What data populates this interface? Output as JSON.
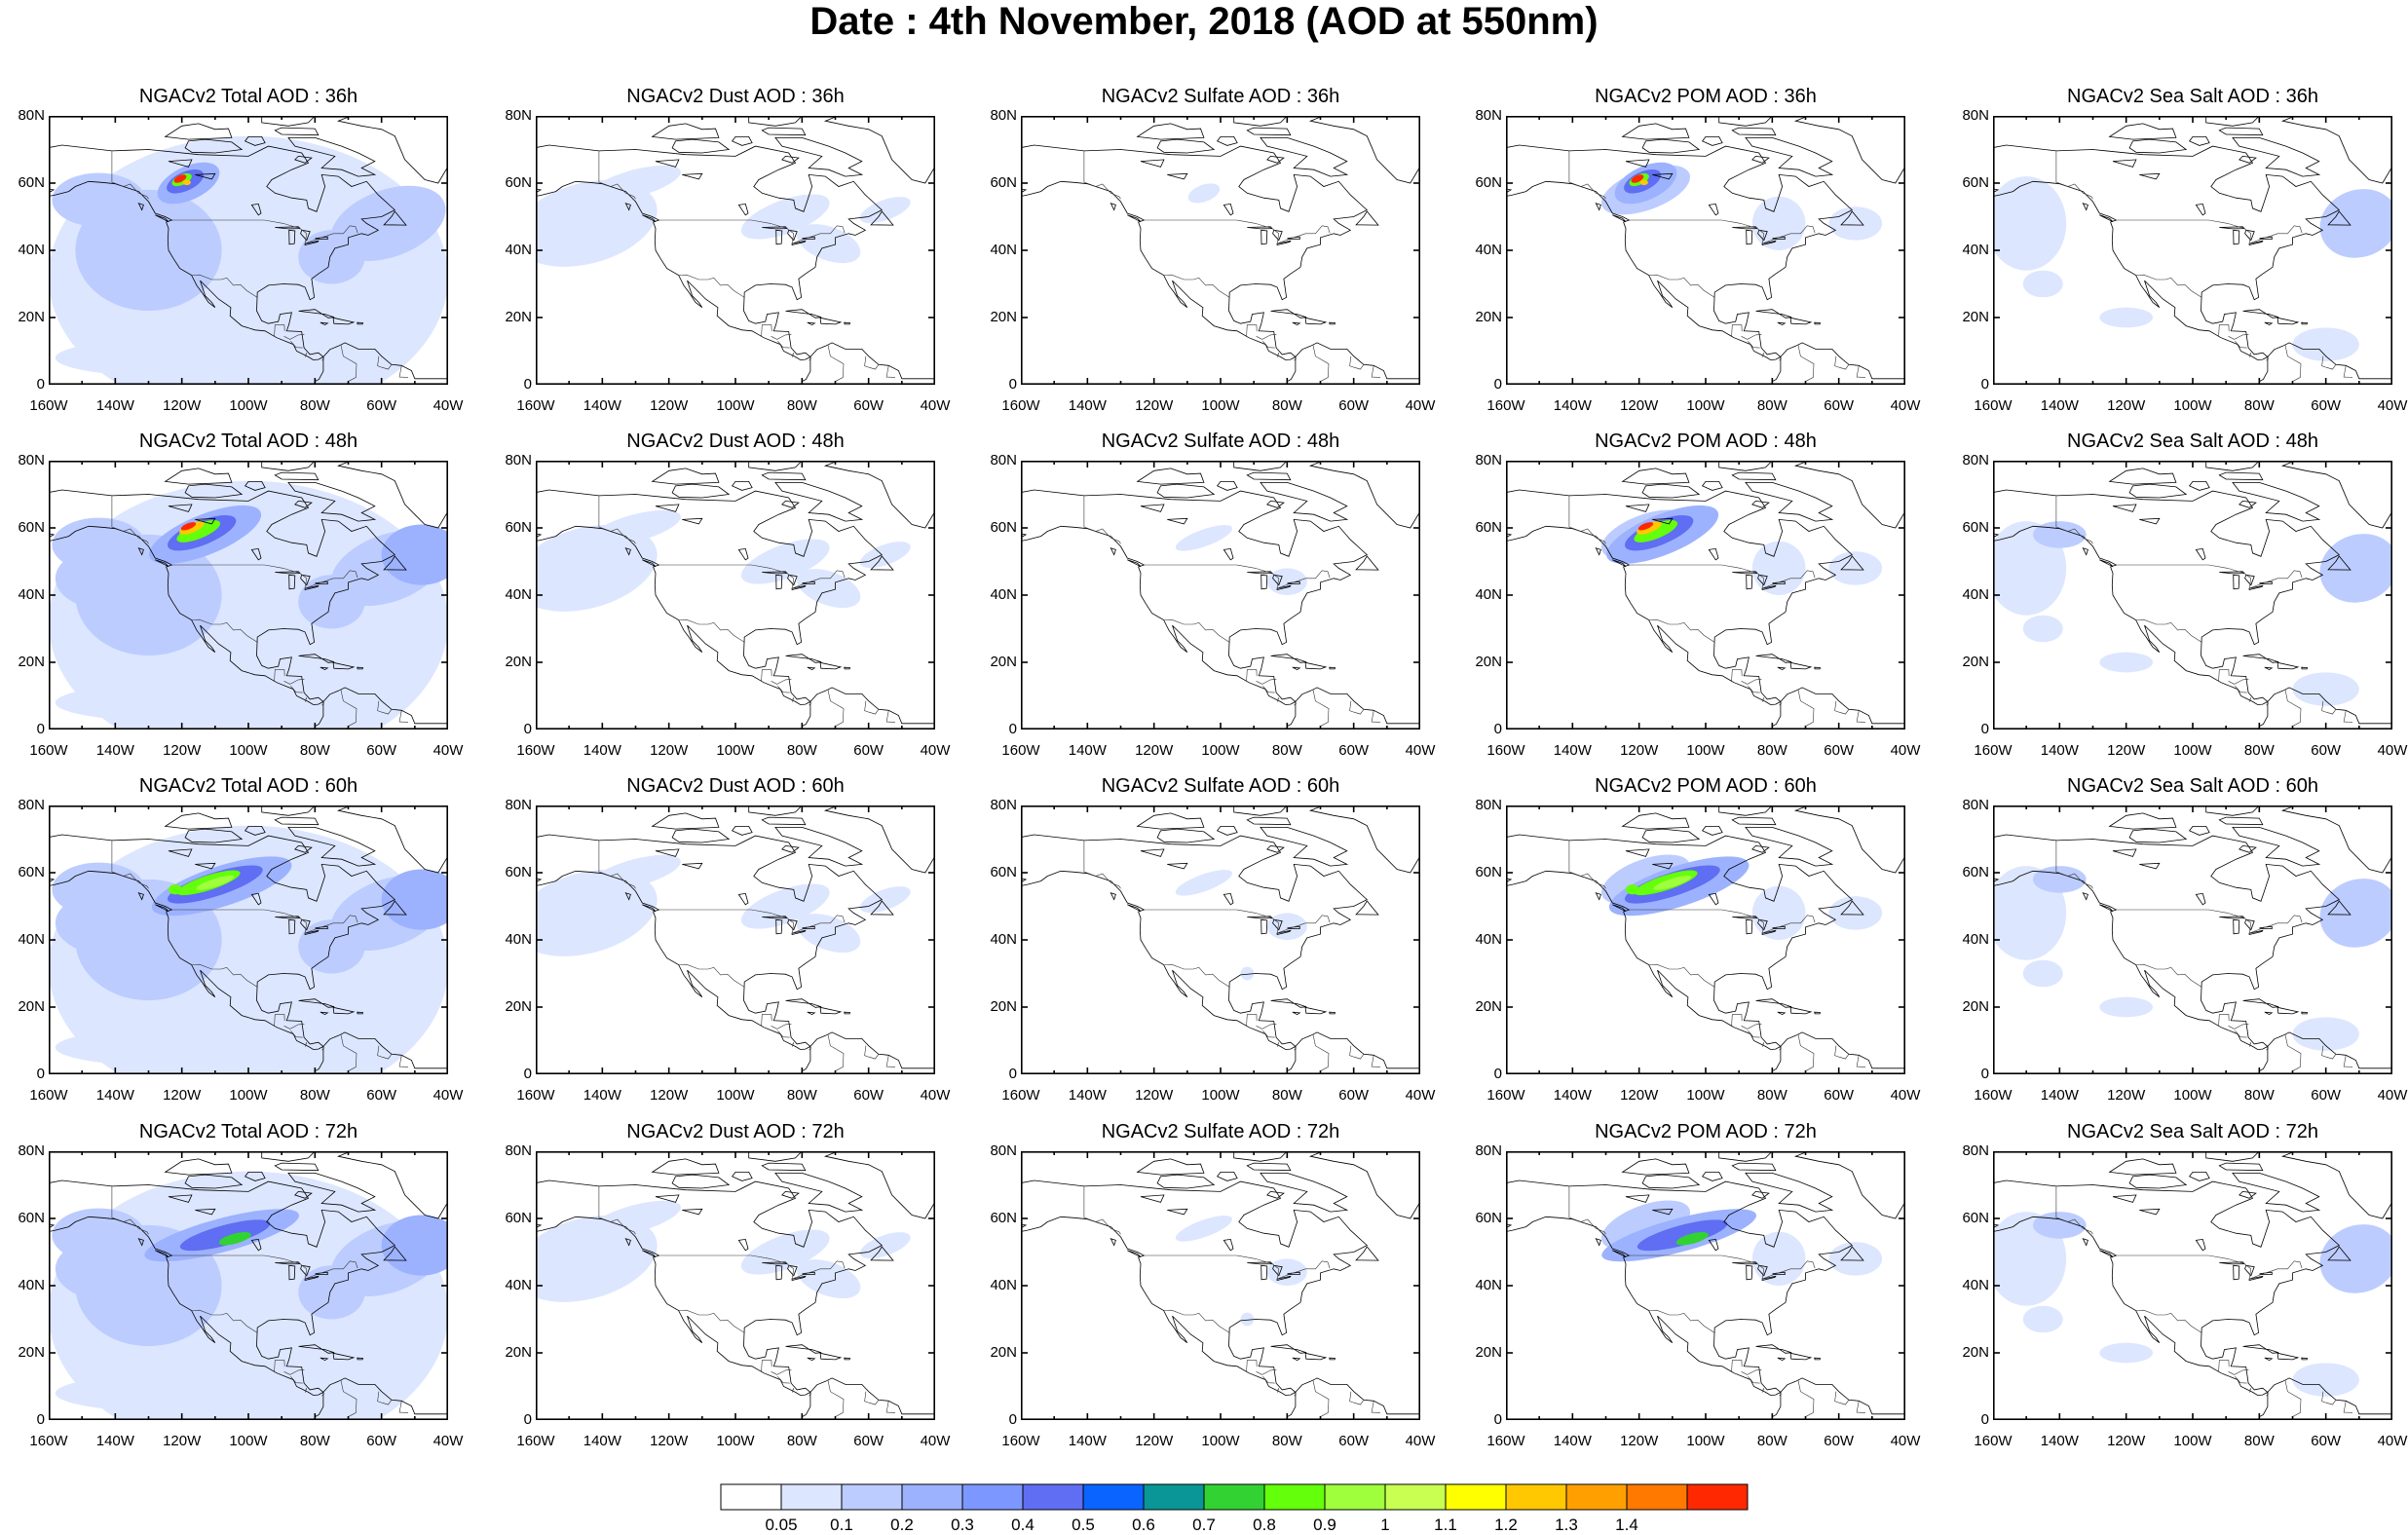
{
  "title": "Date : 4th November, 2018 (AOD at 550nm)",
  "xticks": [
    "160W",
    "140W",
    "120W",
    "100W",
    "80W",
    "60W",
    "40W"
  ],
  "yticks": [
    "80N",
    "60N",
    "40N",
    "20N",
    "0"
  ],
  "colorbar": {
    "labels": [
      "0.05",
      "0.1",
      "0.2",
      "0.3",
      "0.4",
      "0.5",
      "0.6",
      "0.7",
      "0.8",
      "0.9",
      "1",
      "1.1",
      "1.2",
      "1.3",
      "1.4"
    ],
    "colors": [
      "#ffffff",
      "#dce6ff",
      "#bcccff",
      "#9cb2ff",
      "#7c97ff",
      "#5f6ef2",
      "#0a64ff",
      "#0a9696",
      "#32d232",
      "#64ff0a",
      "#a0ff3c",
      "#c8ff50",
      "#ffff00",
      "#ffc800",
      "#ffa000",
      "#ff7800",
      "#ff2800"
    ]
  },
  "panels": [
    {
      "title": "NGACv2 Total AOD : 36h",
      "species": "total",
      "hour": 36
    },
    {
      "title": "NGACv2 Dust AOD : 36h",
      "species": "dust",
      "hour": 36
    },
    {
      "title": "NGACv2 Sulfate AOD : 36h",
      "species": "sulfate",
      "hour": 36
    },
    {
      "title": "NGACv2 POM AOD : 36h",
      "species": "pom",
      "hour": 36
    },
    {
      "title": "NGACv2 Sea Salt AOD : 36h",
      "species": "seasalt",
      "hour": 36
    },
    {
      "title": "NGACv2 Total AOD : 48h",
      "species": "total",
      "hour": 48
    },
    {
      "title": "NGACv2 Dust AOD : 48h",
      "species": "dust",
      "hour": 48
    },
    {
      "title": "NGACv2 Sulfate AOD : 48h",
      "species": "sulfate",
      "hour": 48
    },
    {
      "title": "NGACv2 POM AOD : 48h",
      "species": "pom",
      "hour": 48
    },
    {
      "title": "NGACv2 Sea Salt AOD : 48h",
      "species": "seasalt",
      "hour": 48
    },
    {
      "title": "NGACv2 Total AOD : 60h",
      "species": "total",
      "hour": 60
    },
    {
      "title": "NGACv2 Dust AOD : 60h",
      "species": "dust",
      "hour": 60
    },
    {
      "title": "NGACv2 Sulfate AOD : 60h",
      "species": "sulfate",
      "hour": 60
    },
    {
      "title": "NGACv2 POM AOD : 60h",
      "species": "pom",
      "hour": 60
    },
    {
      "title": "NGACv2 Sea Salt AOD : 60h",
      "species": "seasalt",
      "hour": 60
    },
    {
      "title": "NGACv2 Total AOD : 72h",
      "species": "total",
      "hour": 72
    },
    {
      "title": "NGACv2 Dust AOD : 72h",
      "species": "dust",
      "hour": 72
    },
    {
      "title": "NGACv2 Sulfate AOD : 72h",
      "species": "sulfate",
      "hour": 72
    },
    {
      "title": "NGACv2 POM AOD : 72h",
      "species": "pom",
      "hour": 72
    },
    {
      "title": "NGACv2 Sea Salt  AOD : 72h",
      "species": "seasalt",
      "hour": 72
    }
  ]
}
